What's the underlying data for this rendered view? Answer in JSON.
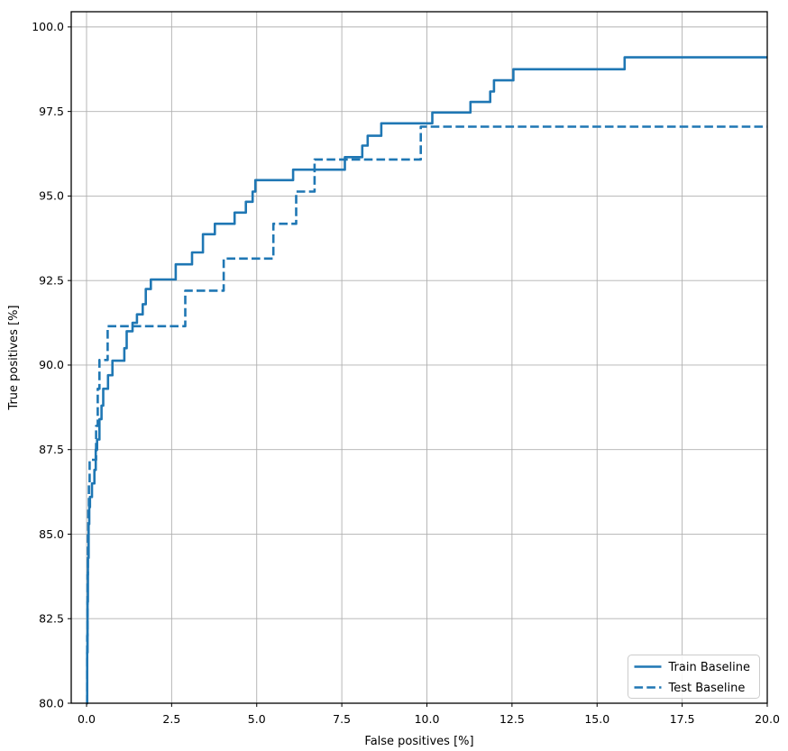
{
  "chart_data": {
    "type": "line",
    "title": "",
    "xlabel": "False positives [%]",
    "ylabel": "True positives [%]",
    "xlim": [
      -0.45,
      20.0
    ],
    "ylim": [
      80.0,
      100.45
    ],
    "grid": true,
    "grid_color": "#b0b0b0",
    "spine_color": "#000000",
    "line_color": "#1f77b4",
    "xticks": {
      "values": [
        0.0,
        2.5,
        5.0,
        7.5,
        10.0,
        12.5,
        15.0,
        17.5,
        20.0
      ],
      "labels": [
        "0.0",
        "2.5",
        "5.0",
        "7.5",
        "10.0",
        "12.5",
        "15.0",
        "17.5",
        "20.0"
      ]
    },
    "yticks": {
      "values": [
        80.0,
        82.5,
        85.0,
        87.5,
        90.0,
        92.5,
        95.0,
        97.5,
        100.0
      ],
      "labels": [
        "80.0",
        "82.5",
        "85.0",
        "87.5",
        "90.0",
        "92.5",
        "95.0",
        "97.5",
        "100.0"
      ]
    },
    "legend": {
      "position": "lower right",
      "entries": [
        {
          "label": "Train Baseline",
          "dash": "solid"
        },
        {
          "label": "Test Baseline",
          "dash": "dashed"
        }
      ]
    },
    "series": [
      {
        "name": "Train Baseline",
        "dash": "solid",
        "step_mode": "post",
        "end_x": 20.0,
        "points": [
          [
            0.0,
            80.0
          ],
          [
            0.02,
            81.5
          ],
          [
            0.03,
            83.0
          ],
          [
            0.04,
            84.3
          ],
          [
            0.06,
            85.3
          ],
          [
            0.08,
            85.8
          ],
          [
            0.1,
            86.1
          ],
          [
            0.16,
            86.5
          ],
          [
            0.23,
            86.9
          ],
          [
            0.27,
            87.5
          ],
          [
            0.31,
            87.8
          ],
          [
            0.38,
            88.4
          ],
          [
            0.44,
            88.8
          ],
          [
            0.49,
            89.3
          ],
          [
            0.63,
            89.7
          ],
          [
            0.76,
            90.13
          ],
          [
            1.11,
            90.5
          ],
          [
            1.18,
            91.0
          ],
          [
            1.35,
            91.25
          ],
          [
            1.48,
            91.5
          ],
          [
            1.65,
            91.8
          ],
          [
            1.74,
            92.25
          ],
          [
            1.89,
            92.53
          ],
          [
            2.62,
            92.98
          ],
          [
            3.1,
            93.33
          ],
          [
            3.42,
            93.87
          ],
          [
            3.77,
            94.18
          ],
          [
            4.35,
            94.51
          ],
          [
            4.68,
            94.83
          ],
          [
            4.88,
            95.13
          ],
          [
            4.96,
            95.47
          ],
          [
            6.07,
            95.78
          ],
          [
            7.59,
            96.15
          ],
          [
            8.1,
            96.49
          ],
          [
            8.26,
            96.78
          ],
          [
            8.66,
            97.15
          ],
          [
            10.16,
            97.47
          ],
          [
            11.28,
            97.78
          ],
          [
            11.86,
            98.09
          ],
          [
            11.97,
            98.42
          ],
          [
            12.54,
            98.75
          ],
          [
            15.81,
            99.1
          ]
        ]
      },
      {
        "name": "Test Baseline",
        "dash": "dashed",
        "step_mode": "post",
        "end_x": 20.0,
        "points": [
          [
            0.0,
            80.0
          ],
          [
            0.02,
            82.0
          ],
          [
            0.03,
            83.8
          ],
          [
            0.04,
            85.0
          ],
          [
            0.05,
            85.8
          ],
          [
            0.07,
            86.5
          ],
          [
            0.09,
            87.2
          ],
          [
            0.28,
            88.2
          ],
          [
            0.33,
            89.3
          ],
          [
            0.38,
            90.15
          ],
          [
            0.62,
            91.15
          ],
          [
            2.9,
            92.2
          ],
          [
            4.03,
            93.15
          ],
          [
            5.49,
            94.18
          ],
          [
            6.16,
            95.13
          ],
          [
            6.7,
            96.08
          ],
          [
            9.82,
            97.05
          ]
        ]
      }
    ]
  }
}
